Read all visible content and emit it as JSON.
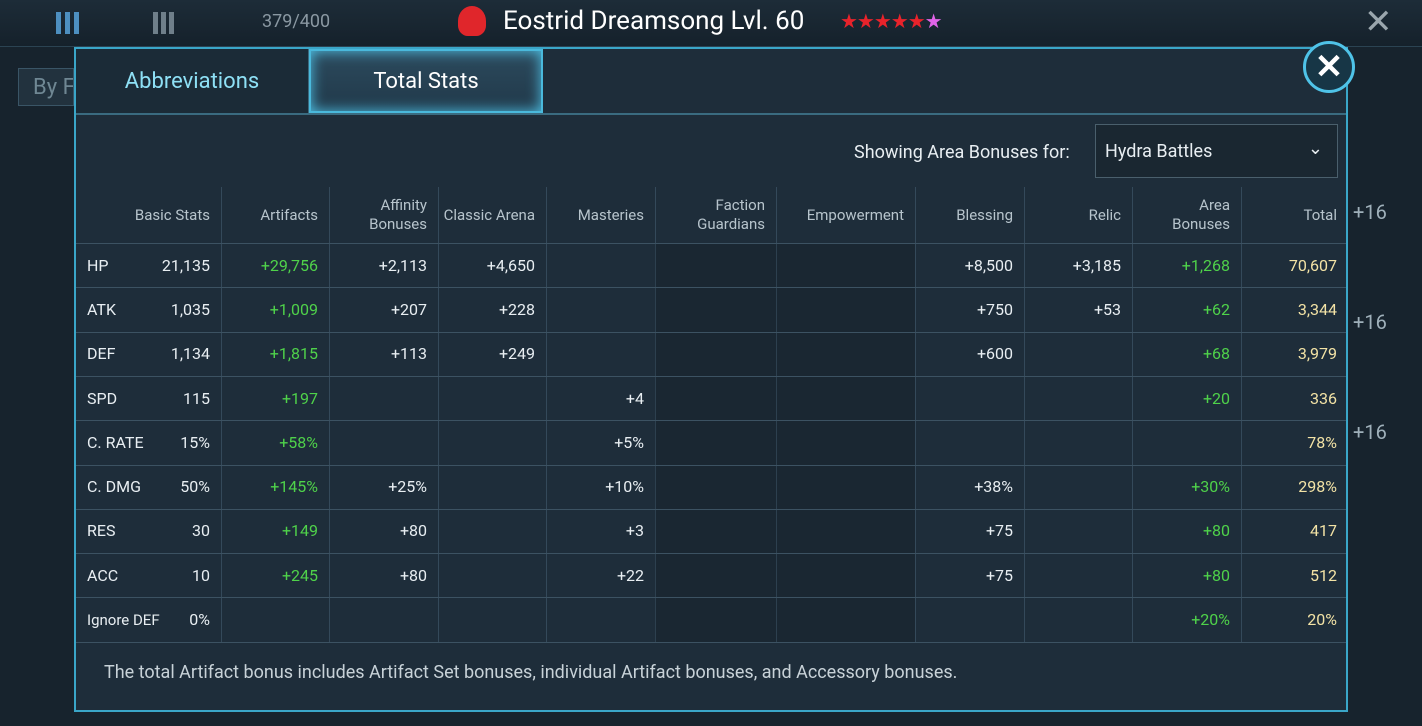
{
  "header": {
    "roster_count": "379/400",
    "hero_title": "Eostrid Dreamsong Lvl. 60"
  },
  "side": {
    "filter_button": "By F",
    "level_badges": [
      "+16",
      "+16",
      "+16"
    ]
  },
  "tabs": [
    "Abbreviations",
    "Total Stats"
  ],
  "filter": {
    "label": "Showing Area Bonuses for:",
    "selected": "Hydra Battles"
  },
  "table": {
    "columns": [
      "Basic Stats",
      "Artifacts",
      "Affinity Bonuses",
      "Classic Arena",
      "Masteries",
      "Faction Guardians",
      "Empowerment",
      "Blessing",
      "Relic",
      "Area Bonuses",
      "Total"
    ],
    "rows": [
      [
        "HP",
        "21,135",
        "+29,756",
        "+2,113",
        "+4,650",
        null,
        null,
        null,
        "+8,500",
        "+3,185",
        "+1,268",
        "70,607"
      ],
      [
        "ATK",
        "1,035",
        "+1,009",
        "+207",
        "+228",
        null,
        null,
        null,
        "+750",
        "+53",
        "+62",
        "3,344"
      ],
      [
        "DEF",
        "1,134",
        "+1,815",
        "+113",
        "+249",
        null,
        null,
        null,
        "+600",
        null,
        "+68",
        "3,979"
      ],
      [
        "SPD",
        "115",
        "+197",
        null,
        null,
        "+4",
        null,
        null,
        null,
        null,
        "+20",
        "336"
      ],
      [
        "C. RATE",
        "15%",
        "+58%",
        null,
        null,
        "+5%",
        null,
        null,
        null,
        null,
        null,
        "78%"
      ],
      [
        "C. DMG",
        "50%",
        "+145%",
        "+25%",
        null,
        "+10%",
        null,
        null,
        "+38%",
        null,
        "+30%",
        "298%"
      ],
      [
        "RES",
        "30",
        "+149",
        "+80",
        null,
        "+3",
        null,
        null,
        "+75",
        null,
        "+80",
        "417"
      ],
      [
        "ACC",
        "10",
        "+245",
        "+80",
        null,
        "+22",
        null,
        null,
        "+75",
        null,
        "+80",
        "512"
      ],
      [
        "Ignore DEF",
        "0%",
        null,
        null,
        null,
        null,
        null,
        null,
        null,
        null,
        "+20%",
        "20%"
      ]
    ]
  },
  "footnote": "The total Artifact bonus includes Artifact Set bonuses, individual Artifact bonuses, and Accessory bonuses."
}
